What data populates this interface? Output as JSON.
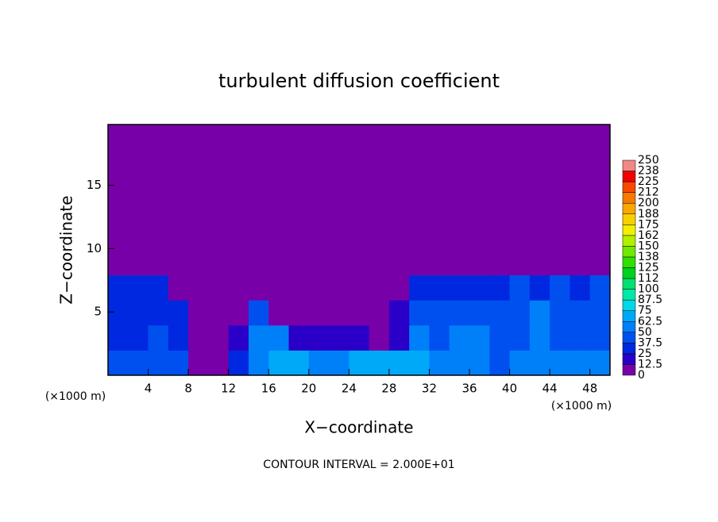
{
  "chart_data": {
    "type": "contour",
    "title": "turbulent diffusion coefficient",
    "x_label": "X−coordinate",
    "y_label": "Z−coordinate",
    "x_unit": "(×1000 m)",
    "x_unit_right": "(×1000 m)",
    "footer": "CONTOUR INTERVAL = 2.000E+01",
    "xlim": [
      0,
      50
    ],
    "ylim": [
      0,
      19.8
    ],
    "xticks": [
      4,
      8,
      12,
      16,
      20,
      24,
      28,
      32,
      36,
      40,
      44,
      48
    ],
    "yticks": [
      5,
      10,
      15
    ],
    "z": [
      [
        40,
        40,
        40,
        40,
        10,
        5,
        35,
        60,
        65,
        70,
        60,
        60,
        65,
        70,
        65,
        70,
        50,
        55,
        60,
        45,
        55,
        50,
        60,
        55,
        50
      ],
      [
        35,
        35,
        40,
        30,
        8,
        5,
        20,
        50,
        55,
        15,
        20,
        15,
        15,
        10,
        15,
        50,
        45,
        55,
        50,
        45,
        40,
        50,
        45,
        40,
        45
      ],
      [
        30,
        35,
        30,
        25,
        8,
        5,
        10,
        40,
        10,
        5,
        8,
        5,
        8,
        5,
        15,
        40,
        45,
        40,
        45,
        40,
        45,
        55,
        40,
        45,
        40
      ],
      [
        30,
        30,
        25,
        10,
        3,
        2,
        2,
        5,
        2,
        2,
        2,
        2,
        2,
        2,
        10,
        30,
        35,
        30,
        30,
        25,
        40,
        35,
        40,
        35,
        40
      ],
      [
        0,
        0,
        0,
        0,
        0,
        0,
        0,
        0,
        0,
        0,
        0,
        0,
        0,
        0,
        0,
        0,
        0,
        0,
        0,
        0,
        0,
        0,
        0,
        0,
        0
      ],
      [
        0,
        0,
        0,
        0,
        0,
        0,
        0,
        0,
        0,
        0,
        0,
        0,
        0,
        0,
        0,
        0,
        0,
        0,
        0,
        0,
        0,
        0,
        0,
        0,
        0
      ],
      [
        0,
        0,
        0,
        0,
        0,
        0,
        0,
        0,
        0,
        0,
        0,
        0,
        0,
        0,
        0,
        0,
        0,
        0,
        0,
        0,
        0,
        0,
        0,
        0,
        0
      ],
      [
        0,
        0,
        0,
        0,
        0,
        0,
        0,
        0,
        0,
        0,
        0,
        0,
        0,
        0,
        0,
        0,
        0,
        0,
        0,
        0,
        0,
        0,
        0,
        0,
        0
      ],
      [
        0,
        0,
        0,
        0,
        0,
        0,
        0,
        0,
        0,
        0,
        0,
        0,
        0,
        0,
        0,
        0,
        0,
        0,
        0,
        0,
        0,
        0,
        0,
        0,
        0
      ],
      [
        0,
        0,
        0,
        0,
        0,
        0,
        0,
        0,
        0,
        0,
        0,
        0,
        0,
        0,
        0,
        0,
        0,
        0,
        0,
        0,
        0,
        0,
        0,
        0,
        0
      ]
    ],
    "levels": [
      0,
      12.5,
      25,
      37.5,
      50,
      62.5,
      75,
      87.5,
      100,
      {
        "value": 112.5,
        "label": "112"
      },
      125,
      {
        "value": 137.5,
        "label": "138"
      },
      150,
      {
        "value": 162.5,
        "label": "162"
      },
      175,
      {
        "value": 187.5,
        "label": "188"
      },
      200,
      {
        "value": 212.5,
        "label": "212"
      },
      225,
      {
        "value": 237.5,
        "label": "238"
      },
      250
    ],
    "colors": [
      "#7800a8",
      "#2a00c8",
      "#0028e0",
      "#0050f0",
      "#0080f8",
      "#00a8f8",
      "#00d8e8",
      "#00e8a8",
      "#00e070",
      "#00d020",
      "#30e000",
      "#70e800",
      "#b0f000",
      "#f0f000",
      "#f8d000",
      "#f8a800",
      "#f87800",
      "#f84800",
      "#f00000",
      "#f08888"
    ]
  }
}
